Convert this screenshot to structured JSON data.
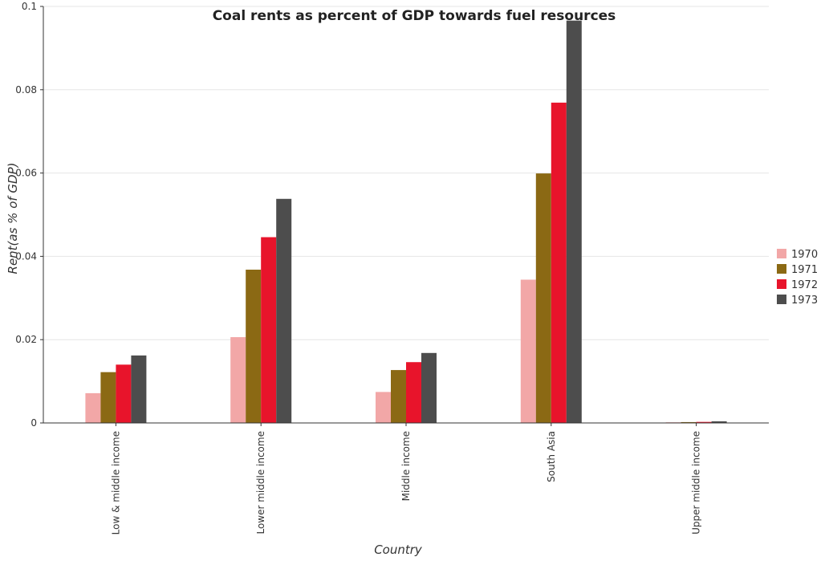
{
  "chart_data": {
    "type": "bar",
    "title": "Coal rents as percent of GDP towards fuel resources",
    "xlabel": "Country",
    "ylabel": "Rent(as % of GDP)",
    "categories": [
      "Low & middle income",
      "Lower middle income",
      "Middle income",
      "South Asia",
      "Upper middle income"
    ],
    "series": [
      {
        "name": "1970",
        "color": "#f2a7a7",
        "values": [
          0.00715,
          0.0206,
          0.00744,
          0.0344,
          0.000158
        ]
      },
      {
        "name": "1971",
        "color": "#8b6914",
        "values": [
          0.0122,
          0.0368,
          0.0127,
          0.0599,
          0.000206
        ]
      },
      {
        "name": "1972",
        "color": "#e8142b",
        "values": [
          0.014,
          0.0446,
          0.0146,
          0.0769,
          0.000254
        ]
      },
      {
        "name": "1973",
        "color": "#4d4d4d",
        "values": [
          0.0162,
          0.0538,
          0.0168,
          0.0966,
          0.000394
        ]
      }
    ],
    "yticks": [
      "0",
      "0.02",
      "0.04",
      "0.06",
      "0.08",
      "0.1"
    ],
    "ylim": [
      0,
      0.1
    ],
    "grid": true,
    "legend_position": "right"
  }
}
